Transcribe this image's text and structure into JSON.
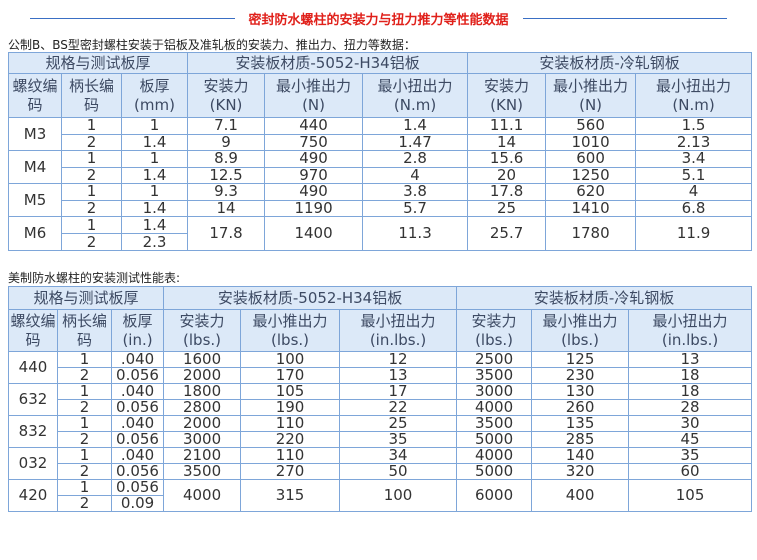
{
  "title": "密封防水螺柱的安装力与扭力推力等性能数据",
  "table1": {
    "caption": "公制B、BS型密封螺柱安装于铝板及准轧板的安装力、推出力、扭力等数据：",
    "groups": [
      "规格与测试板厚",
      "安装板材质-5052-H34铝板",
      "安装板材质-冷轧钢板"
    ],
    "columns": [
      "螺纹编\n码",
      "柄长编\n码",
      "板厚\n(mm)",
      "安装力\n(KN)",
      "最小推出力\n(N)",
      "最小扭出力\n(N.m)",
      "安装力\n(KN)",
      "最小推出力\n(N)",
      "最小扭出力\n(N.m)"
    ],
    "sections": [
      {
        "thread": "M3",
        "rows": [
          [
            "1",
            "1",
            "7.1",
            "440",
            "1.4",
            "11.1",
            "560",
            "1.5"
          ],
          [
            "2",
            "1.4",
            "9",
            "750",
            "1.47",
            "14",
            "1010",
            "2.13"
          ]
        ]
      },
      {
        "thread": "M4",
        "rows": [
          [
            "1",
            "1",
            "8.9",
            "490",
            "2.8",
            "15.6",
            "600",
            "3.4"
          ],
          [
            "2",
            "1.4",
            "12.5",
            "970",
            "4",
            "20",
            "1250",
            "5.1"
          ]
        ]
      },
      {
        "thread": "M5",
        "rows": [
          [
            "1",
            "1",
            "9.3",
            "490",
            "3.8",
            "17.8",
            "620",
            "4"
          ],
          [
            "2",
            "1.4",
            "14",
            "1190",
            "5.7",
            "25",
            "1410",
            "6.8"
          ]
        ]
      },
      {
        "thread": "M6",
        "rows": [
          [
            "1",
            "1.4"
          ],
          [
            "2",
            "2.3"
          ]
        ],
        "shared": [
          "17.8",
          "1400",
          "11.3",
          "25.7",
          "1780",
          "11.9"
        ]
      }
    ]
  },
  "table2": {
    "caption": "美制防水螺柱的安装测试性能表:",
    "groups": [
      "规格与测试板厚",
      "安装板材质-5052-H34铝板",
      "安装板材质-冷轧钢板"
    ],
    "columns": [
      "螺纹编\n码",
      "柄长编\n码",
      "板厚\n(in.)",
      "安装力\n(lbs.)",
      "最小推出力\n(lbs.)",
      "最小扭出力\n(in.lbs.)",
      "安装力\n(lbs.)",
      "最小推出力\n(lbs.)",
      "最小扭出力\n(in.lbs.)"
    ],
    "sections": [
      {
        "thread": "440",
        "rows": [
          [
            "1",
            ".040",
            "1600",
            "100",
            "12",
            "2500",
            "125",
            "13"
          ],
          [
            "2",
            "0.056",
            "2000",
            "170",
            "13",
            "3500",
            "230",
            "18"
          ]
        ]
      },
      {
        "thread": "632",
        "rows": [
          [
            "1",
            ".040",
            "1800",
            "105",
            "17",
            "3000",
            "130",
            "18"
          ],
          [
            "2",
            "0.056",
            "2800",
            "190",
            "22",
            "4000",
            "260",
            "28"
          ]
        ]
      },
      {
        "thread": "832",
        "rows": [
          [
            "1",
            ".040",
            "2000",
            "110",
            "25",
            "3500",
            "135",
            "30"
          ],
          [
            "2",
            "0.056",
            "3000",
            "220",
            "35",
            "5000",
            "285",
            "45"
          ]
        ]
      },
      {
        "thread": "032",
        "rows": [
          [
            "1",
            ".040",
            "2100",
            "110",
            "34",
            "4000",
            "140",
            "35"
          ],
          [
            "2",
            "0.056",
            "3500",
            "270",
            "50",
            "5000",
            "320",
            "60"
          ]
        ]
      },
      {
        "thread": "420",
        "rows": [
          [
            "1",
            "0.056"
          ],
          [
            "2",
            "0.09"
          ]
        ],
        "shared": [
          "4000",
          "315",
          "100",
          "6000",
          "400",
          "105"
        ]
      }
    ]
  }
}
